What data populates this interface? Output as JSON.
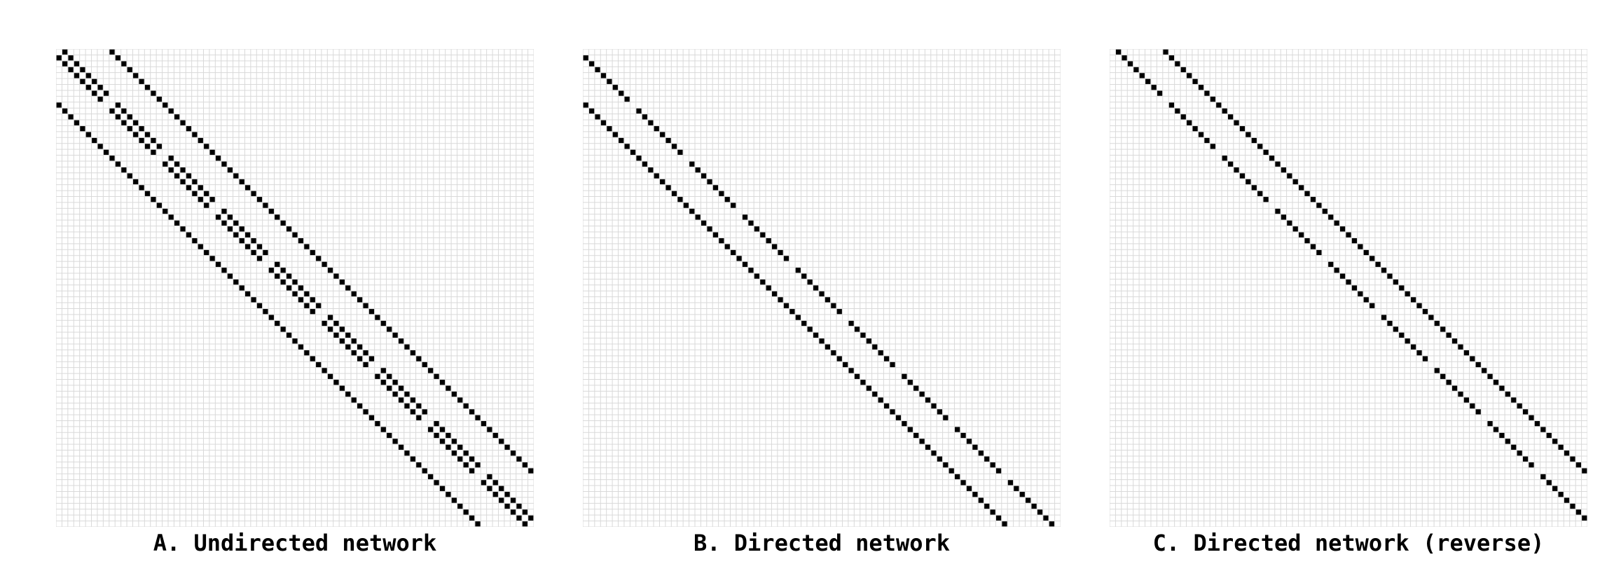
{
  "panels": [
    {
      "id": "A",
      "caption": "A. Undirected network",
      "mode": "undirected"
    },
    {
      "id": "B",
      "caption": "B. Directed network",
      "mode": "lower"
    },
    {
      "id": "C",
      "caption": "C. Directed network (reverse)",
      "mode": "upper"
    }
  ],
  "matrix": {
    "size": 81,
    "lattice": "9x9 grid graph, neighbours at index offsets ±1 and ±9",
    "cell_color": "#000000",
    "grid_color": "#d9d9d9",
    "background": "#ffffff"
  }
}
